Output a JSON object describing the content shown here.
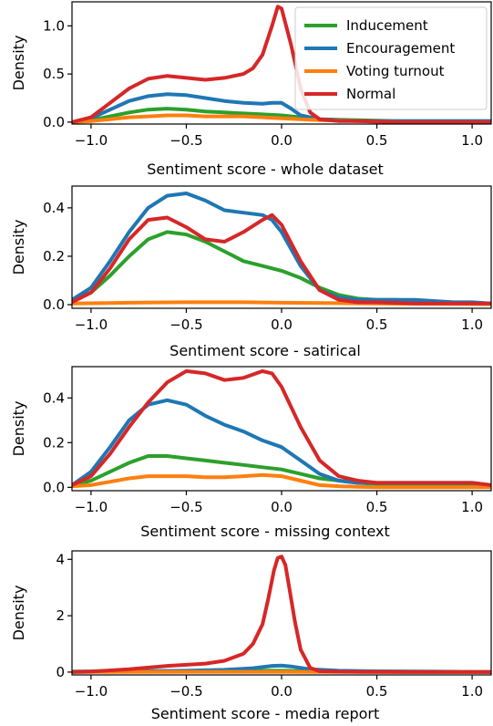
{
  "chart_data": [
    {
      "type": "line",
      "xlabel": "Sentiment score - whole dataset",
      "ylabel": "Density",
      "xlim": [
        -1.1,
        1.1
      ],
      "ylim": [
        -0.02,
        1.25
      ],
      "xticks": [
        -1.0,
        -0.5,
        0.0,
        0.5,
        1.0
      ],
      "xtick_labels": [
        "−1.0",
        "−0.5",
        "0.0",
        "0.5",
        "1.0"
      ],
      "yticks": [
        0.0,
        0.5,
        1.0
      ],
      "ytick_labels": [
        "0.0",
        "0.5",
        "1.0"
      ],
      "legend_position": "top-right",
      "series": [
        {
          "name": "Inducement",
          "color": "#2ca02c",
          "x": [
            -1.1,
            -1.0,
            -0.9,
            -0.8,
            -0.7,
            -0.6,
            -0.5,
            -0.4,
            -0.3,
            -0.2,
            -0.1,
            0.0,
            0.1,
            0.2,
            0.4,
            0.6,
            0.8,
            1.0,
            1.1
          ],
          "y": [
            0.0,
            0.02,
            0.06,
            0.1,
            0.13,
            0.14,
            0.13,
            0.11,
            0.1,
            0.09,
            0.08,
            0.07,
            0.05,
            0.03,
            0.02,
            0.01,
            0.01,
            0.01,
            0.01
          ]
        },
        {
          "name": "Encouragement",
          "color": "#1f77b4",
          "x": [
            -1.1,
            -1.0,
            -0.9,
            -0.8,
            -0.7,
            -0.6,
            -0.5,
            -0.4,
            -0.3,
            -0.2,
            -0.1,
            -0.05,
            0.0,
            0.05,
            0.1,
            0.2,
            0.4,
            0.6,
            0.8,
            1.0,
            1.1
          ],
          "y": [
            0.0,
            0.04,
            0.13,
            0.22,
            0.27,
            0.29,
            0.28,
            0.25,
            0.22,
            0.2,
            0.19,
            0.2,
            0.2,
            0.14,
            0.07,
            0.03,
            0.01,
            0.01,
            0.01,
            0.01,
            0.01
          ]
        },
        {
          "name": "Voting turnout",
          "color": "#ff7f0e",
          "x": [
            -1.1,
            -1.0,
            -0.9,
            -0.8,
            -0.7,
            -0.6,
            -0.5,
            -0.4,
            -0.3,
            -0.2,
            -0.1,
            0.0,
            0.1,
            0.2,
            0.4,
            0.6,
            0.8,
            1.0,
            1.1
          ],
          "y": [
            0.0,
            0.01,
            0.03,
            0.05,
            0.06,
            0.07,
            0.07,
            0.06,
            0.06,
            0.06,
            0.05,
            0.04,
            0.03,
            0.02,
            0.01,
            0.0,
            0.0,
            0.0,
            0.0
          ]
        },
        {
          "name": "Normal",
          "color": "#d62728",
          "x": [
            -1.1,
            -1.0,
            -0.9,
            -0.8,
            -0.7,
            -0.6,
            -0.5,
            -0.4,
            -0.3,
            -0.2,
            -0.15,
            -0.1,
            -0.05,
            -0.02,
            0.0,
            0.05,
            0.1,
            0.15,
            0.2,
            0.3,
            0.4,
            0.6,
            0.8,
            1.0,
            1.1
          ],
          "y": [
            0.0,
            0.05,
            0.2,
            0.35,
            0.45,
            0.48,
            0.46,
            0.44,
            0.46,
            0.5,
            0.56,
            0.7,
            1.0,
            1.2,
            1.18,
            0.8,
            0.35,
            0.1,
            0.03,
            0.01,
            0.01,
            0.0,
            0.0,
            0.0,
            0.0
          ]
        }
      ]
    },
    {
      "type": "line",
      "xlabel": "Sentiment score - satirical",
      "ylabel": "Density",
      "xlim": [
        -1.1,
        1.1
      ],
      "ylim": [
        -0.015,
        0.49
      ],
      "xticks": [
        -1.0,
        -0.5,
        0.0,
        0.5,
        1.0
      ],
      "xtick_labels": [
        "−1.0",
        "−0.5",
        "0.0",
        "0.5",
        "1.0"
      ],
      "yticks": [
        0.0,
        0.2,
        0.4
      ],
      "ytick_labels": [
        "0.0",
        "0.2",
        "0.4"
      ],
      "series": [
        {
          "name": "Inducement",
          "color": "#2ca02c",
          "x": [
            -1.1,
            -1.0,
            -0.9,
            -0.8,
            -0.7,
            -0.6,
            -0.5,
            -0.4,
            -0.3,
            -0.2,
            -0.1,
            0.0,
            0.1,
            0.2,
            0.3,
            0.4,
            0.5,
            0.6,
            0.8,
            1.0,
            1.1
          ],
          "y": [
            0.02,
            0.05,
            0.12,
            0.2,
            0.27,
            0.3,
            0.29,
            0.26,
            0.22,
            0.18,
            0.16,
            0.14,
            0.11,
            0.07,
            0.04,
            0.025,
            0.02,
            0.02,
            0.01,
            0.005,
            0.005
          ]
        },
        {
          "name": "Encouragement",
          "color": "#1f77b4",
          "x": [
            -1.1,
            -1.0,
            -0.9,
            -0.8,
            -0.7,
            -0.6,
            -0.5,
            -0.4,
            -0.3,
            -0.2,
            -0.1,
            -0.05,
            0.0,
            0.1,
            0.2,
            0.3,
            0.4,
            0.5,
            0.7,
            0.9,
            1.0,
            1.1
          ],
          "y": [
            0.02,
            0.07,
            0.18,
            0.3,
            0.4,
            0.45,
            0.46,
            0.43,
            0.39,
            0.38,
            0.37,
            0.35,
            0.3,
            0.16,
            0.06,
            0.03,
            0.02,
            0.02,
            0.02,
            0.01,
            0.01,
            0.005
          ]
        },
        {
          "name": "Voting turnout",
          "color": "#ff7f0e",
          "x": [
            -1.1,
            -0.8,
            -0.5,
            -0.2,
            0.0,
            0.3,
            0.6,
            0.9,
            1.1
          ],
          "y": [
            0.005,
            0.008,
            0.01,
            0.01,
            0.008,
            0.006,
            0.004,
            0.003,
            0.002
          ]
        },
        {
          "name": "Normal",
          "color": "#d62728",
          "x": [
            -1.1,
            -1.0,
            -0.9,
            -0.8,
            -0.7,
            -0.6,
            -0.5,
            -0.4,
            -0.3,
            -0.2,
            -0.1,
            -0.05,
            0.0,
            0.1,
            0.2,
            0.3,
            0.4,
            0.5,
            0.7,
            0.9,
            1.1
          ],
          "y": [
            0.01,
            0.05,
            0.15,
            0.27,
            0.35,
            0.36,
            0.32,
            0.27,
            0.26,
            0.3,
            0.35,
            0.37,
            0.33,
            0.18,
            0.06,
            0.02,
            0.01,
            0.01,
            0.005,
            0.005,
            0.005
          ]
        }
      ]
    },
    {
      "type": "line",
      "xlabel": "Sentiment score - missing context",
      "ylabel": "Density",
      "xlim": [
        -1.1,
        1.1
      ],
      "ylim": [
        -0.015,
        0.54
      ],
      "xticks": [
        -1.0,
        -0.5,
        0.0,
        0.5,
        1.0
      ],
      "xtick_labels": [
        "−1.0",
        "−0.5",
        "0.0",
        "0.5",
        "1.0"
      ],
      "yticks": [
        0.0,
        0.2,
        0.4
      ],
      "ytick_labels": [
        "0.0",
        "0.2",
        "0.4"
      ],
      "series": [
        {
          "name": "Inducement",
          "color": "#2ca02c",
          "x": [
            -1.1,
            -1.0,
            -0.9,
            -0.8,
            -0.7,
            -0.6,
            -0.5,
            -0.4,
            -0.3,
            -0.2,
            -0.1,
            0.0,
            0.1,
            0.2,
            0.4,
            0.6,
            0.8,
            1.0,
            1.1
          ],
          "y": [
            0.01,
            0.03,
            0.07,
            0.11,
            0.14,
            0.14,
            0.13,
            0.12,
            0.11,
            0.1,
            0.09,
            0.08,
            0.06,
            0.04,
            0.02,
            0.01,
            0.005,
            0.005,
            0.005
          ]
        },
        {
          "name": "Encouragement",
          "color": "#1f77b4",
          "x": [
            -1.1,
            -1.0,
            -0.9,
            -0.8,
            -0.7,
            -0.6,
            -0.5,
            -0.4,
            -0.3,
            -0.2,
            -0.1,
            0.0,
            0.1,
            0.2,
            0.3,
            0.4,
            0.6,
            0.8,
            1.0,
            1.1
          ],
          "y": [
            0.01,
            0.07,
            0.18,
            0.3,
            0.37,
            0.39,
            0.37,
            0.32,
            0.28,
            0.25,
            0.21,
            0.18,
            0.12,
            0.06,
            0.03,
            0.02,
            0.02,
            0.02,
            0.02,
            0.01
          ]
        },
        {
          "name": "Voting turnout",
          "color": "#ff7f0e",
          "x": [
            -1.1,
            -1.0,
            -0.9,
            -0.8,
            -0.7,
            -0.6,
            -0.5,
            -0.4,
            -0.3,
            -0.2,
            -0.1,
            0.0,
            0.1,
            0.2,
            0.3,
            0.4,
            0.5,
            0.7,
            0.9,
            1.1
          ],
          "y": [
            0.005,
            0.01,
            0.025,
            0.04,
            0.05,
            0.05,
            0.05,
            0.045,
            0.045,
            0.05,
            0.055,
            0.05,
            0.03,
            0.01,
            0.005,
            0.002,
            0.0,
            0.0,
            0.0,
            0.0
          ]
        },
        {
          "name": "Normal",
          "color": "#d62728",
          "x": [
            -1.1,
            -1.0,
            -0.9,
            -0.8,
            -0.7,
            -0.6,
            -0.5,
            -0.4,
            -0.3,
            -0.2,
            -0.1,
            -0.05,
            0.0,
            0.1,
            0.2,
            0.3,
            0.4,
            0.5,
            0.7,
            0.9,
            1.0,
            1.1
          ],
          "y": [
            0.01,
            0.05,
            0.15,
            0.27,
            0.38,
            0.47,
            0.52,
            0.51,
            0.48,
            0.49,
            0.52,
            0.51,
            0.45,
            0.27,
            0.12,
            0.05,
            0.03,
            0.02,
            0.02,
            0.02,
            0.02,
            0.01
          ]
        }
      ]
    },
    {
      "type": "line",
      "xlabel": "Sentiment score - media report",
      "ylabel": "Density",
      "xlim": [
        -1.1,
        1.1
      ],
      "ylim": [
        -0.1,
        4.3
      ],
      "xticks": [
        -1.0,
        -0.5,
        0.0,
        0.5,
        1.0
      ],
      "xtick_labels": [
        "−1.0",
        "−0.5",
        "0.0",
        "0.5",
        "1.0"
      ],
      "yticks": [
        0,
        2,
        4
      ],
      "ytick_labels": [
        "0",
        "2",
        "4"
      ],
      "series": [
        {
          "name": "Inducement",
          "color": "#2ca02c",
          "x": [
            -1.1,
            -0.8,
            -0.5,
            -0.2,
            0.0,
            0.2,
            0.5,
            0.8,
            1.1
          ],
          "y": [
            0.01,
            0.02,
            0.04,
            0.05,
            0.05,
            0.03,
            0.02,
            0.01,
            0.01
          ]
        },
        {
          "name": "Encouragement",
          "color": "#1f77b4",
          "x": [
            -1.1,
            -0.8,
            -0.5,
            -0.3,
            -0.15,
            -0.05,
            0.0,
            0.05,
            0.15,
            0.3,
            0.5,
            0.8,
            1.1
          ],
          "y": [
            0.02,
            0.03,
            0.05,
            0.08,
            0.14,
            0.22,
            0.23,
            0.2,
            0.1,
            0.05,
            0.03,
            0.02,
            0.01
          ]
        },
        {
          "name": "Voting turnout",
          "color": "#ff7f0e",
          "x": [
            -1.1,
            -0.5,
            0.0,
            0.5,
            1.1
          ],
          "y": [
            0.005,
            0.01,
            0.01,
            0.005,
            0.002
          ]
        },
        {
          "name": "Normal",
          "color": "#d62728",
          "x": [
            -1.1,
            -1.0,
            -0.8,
            -0.6,
            -0.4,
            -0.3,
            -0.2,
            -0.15,
            -0.1,
            -0.07,
            -0.04,
            -0.02,
            0.0,
            0.02,
            0.04,
            0.07,
            0.1,
            0.15,
            0.2,
            0.4,
            0.7,
            1.1
          ],
          "y": [
            0.0,
            0.02,
            0.1,
            0.22,
            0.3,
            0.4,
            0.65,
            1.0,
            1.7,
            2.6,
            3.6,
            4.05,
            4.1,
            3.8,
            3.0,
            1.8,
            0.8,
            0.15,
            0.03,
            0.01,
            0.0,
            0.0
          ]
        }
      ]
    }
  ],
  "legend": {
    "items": [
      {
        "name": "Inducement",
        "color": "#2ca02c"
      },
      {
        "name": "Encouragement",
        "color": "#1f77b4"
      },
      {
        "name": "Voting turnout",
        "color": "#ff7f0e"
      },
      {
        "name": "Normal",
        "color": "#d62728"
      }
    ]
  }
}
